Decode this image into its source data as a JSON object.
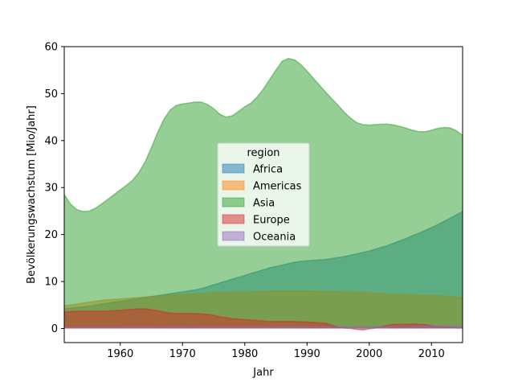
{
  "chart_data": {
    "type": "area",
    "xlabel": "Jahr",
    "ylabel": "Bevölkerungswachstum [Mio/Jahr]",
    "xlim": [
      1951,
      2015
    ],
    "ylim": [
      -3,
      60
    ],
    "xticks": [
      1960,
      1970,
      1980,
      1990,
      2000,
      2010
    ],
    "yticks": [
      0,
      10,
      20,
      30,
      40,
      50,
      60
    ],
    "grid": false,
    "stacked": false,
    "legend": {
      "title": "region",
      "position": "center"
    },
    "x": [
      1951,
      1952,
      1953,
      1954,
      1955,
      1956,
      1957,
      1958,
      1959,
      1960,
      1961,
      1962,
      1963,
      1964,
      1965,
      1966,
      1967,
      1968,
      1969,
      1970,
      1971,
      1972,
      1973,
      1974,
      1975,
      1976,
      1977,
      1978,
      1979,
      1980,
      1981,
      1982,
      1983,
      1984,
      1985,
      1986,
      1987,
      1988,
      1989,
      1990,
      1991,
      1992,
      1993,
      1994,
      1995,
      1996,
      1997,
      1998,
      1999,
      2000,
      2001,
      2002,
      2003,
      2004,
      2005,
      2006,
      2007,
      2008,
      2009,
      2010,
      2011,
      2012,
      2013,
      2014,
      2015
    ],
    "series": [
      {
        "name": "Africa",
        "color": "#1f77b4",
        "values": [
          4.2,
          4.3,
          4.5,
          4.6,
          4.8,
          5.0,
          5.2,
          5.4,
          5.6,
          5.8,
          6.0,
          6.2,
          6.4,
          6.6,
          6.8,
          7.0,
          7.2,
          7.4,
          7.6,
          7.8,
          8.0,
          8.2,
          8.5,
          8.9,
          9.3,
          9.7,
          10.1,
          10.5,
          10.9,
          11.3,
          11.7,
          12.1,
          12.5,
          12.9,
          13.2,
          13.5,
          13.8,
          14.1,
          14.3,
          14.4,
          14.5,
          14.6,
          14.7,
          14.9,
          15.1,
          15.3,
          15.6,
          15.9,
          16.2,
          16.5,
          16.9,
          17.3,
          17.7,
          18.2,
          18.7,
          19.2,
          19.8,
          20.3,
          20.9,
          21.5,
          22.1,
          22.8,
          23.5,
          24.2,
          24.9
        ]
      },
      {
        "name": "Americas",
        "color": "#ff7f0e",
        "values": [
          4.8,
          5.0,
          5.2,
          5.4,
          5.6,
          5.8,
          6.0,
          6.1,
          6.2,
          6.3,
          6.4,
          6.5,
          6.6,
          6.7,
          6.8,
          6.9,
          7.0,
          7.1,
          7.2,
          7.3,
          7.3,
          7.4,
          7.5,
          7.6,
          7.6,
          7.7,
          7.7,
          7.7,
          7.8,
          7.8,
          7.8,
          7.9,
          7.9,
          8.0,
          8.0,
          8.0,
          8.0,
          8.0,
          8.0,
          8.0,
          8.0,
          7.9,
          7.9,
          7.9,
          7.8,
          7.8,
          7.8,
          7.7,
          7.7,
          7.6,
          7.5,
          7.4,
          7.3,
          7.3,
          7.2,
          7.2,
          7.2,
          7.1,
          7.1,
          7.0,
          7.0,
          6.9,
          6.8,
          6.7,
          6.6
        ]
      },
      {
        "name": "Asia",
        "color": "#2ca02c",
        "values": [
          28.5,
          26.5,
          25.3,
          24.9,
          25.0,
          25.6,
          26.5,
          27.5,
          28.5,
          29.5,
          30.5,
          31.6,
          33.2,
          35.5,
          38.5,
          41.7,
          44.5,
          46.5,
          47.5,
          47.8,
          48.0,
          48.2,
          48.2,
          47.7,
          46.8,
          45.6,
          45.0,
          45.3,
          46.2,
          47.2,
          48.0,
          49.3,
          51.0,
          53.0,
          55.0,
          56.9,
          57.5,
          57.2,
          56.2,
          54.8,
          53.3,
          51.8,
          50.3,
          48.9,
          47.5,
          46.0,
          44.8,
          43.8,
          43.4,
          43.3,
          43.4,
          43.5,
          43.5,
          43.3,
          43.0,
          42.6,
          42.2,
          41.9,
          41.9,
          42.2,
          42.6,
          42.8,
          42.7,
          42.1,
          41.1
        ]
      },
      {
        "name": "Europe",
        "color": "#d62728",
        "values": [
          3.5,
          3.6,
          3.7,
          3.7,
          3.7,
          3.7,
          3.7,
          3.7,
          3.8,
          3.9,
          4.0,
          4.1,
          4.2,
          4.2,
          4.0,
          3.8,
          3.5,
          3.3,
          3.2,
          3.2,
          3.2,
          3.2,
          3.1,
          3.0,
          2.8,
          2.5,
          2.3,
          2.1,
          2.0,
          1.9,
          1.8,
          1.7,
          1.6,
          1.5,
          1.5,
          1.5,
          1.5,
          1.5,
          1.4,
          1.4,
          1.3,
          1.2,
          1.1,
          0.7,
          0.3,
          0.1,
          0.0,
          -0.2,
          -0.3,
          -0.1,
          0.1,
          0.4,
          0.7,
          0.9,
          0.9,
          0.9,
          1.0,
          0.9,
          0.8,
          0.6,
          0.4,
          0.3,
          0.2,
          0.1,
          0.1
        ]
      },
      {
        "name": "Oceania",
        "color": "#9467bd",
        "values": [
          0.2,
          0.2,
          0.2,
          0.25,
          0.25,
          0.25,
          0.25,
          0.25,
          0.25,
          0.3,
          0.3,
          0.3,
          0.3,
          0.3,
          0.3,
          0.3,
          0.35,
          0.35,
          0.35,
          0.35,
          0.35,
          0.3,
          0.3,
          0.3,
          0.3,
          0.3,
          0.3,
          0.3,
          0.3,
          0.3,
          0.3,
          0.3,
          0.3,
          0.3,
          0.35,
          0.35,
          0.35,
          0.35,
          0.35,
          0.35,
          0.35,
          0.35,
          0.35,
          0.35,
          0.35,
          0.35,
          0.35,
          0.35,
          0.35,
          0.35,
          0.35,
          0.35,
          0.35,
          0.4,
          0.4,
          0.4,
          0.45,
          0.45,
          0.5,
          0.5,
          0.5,
          0.5,
          0.5,
          0.5,
          0.5
        ]
      }
    ],
    "alpha": 0.5
  }
}
